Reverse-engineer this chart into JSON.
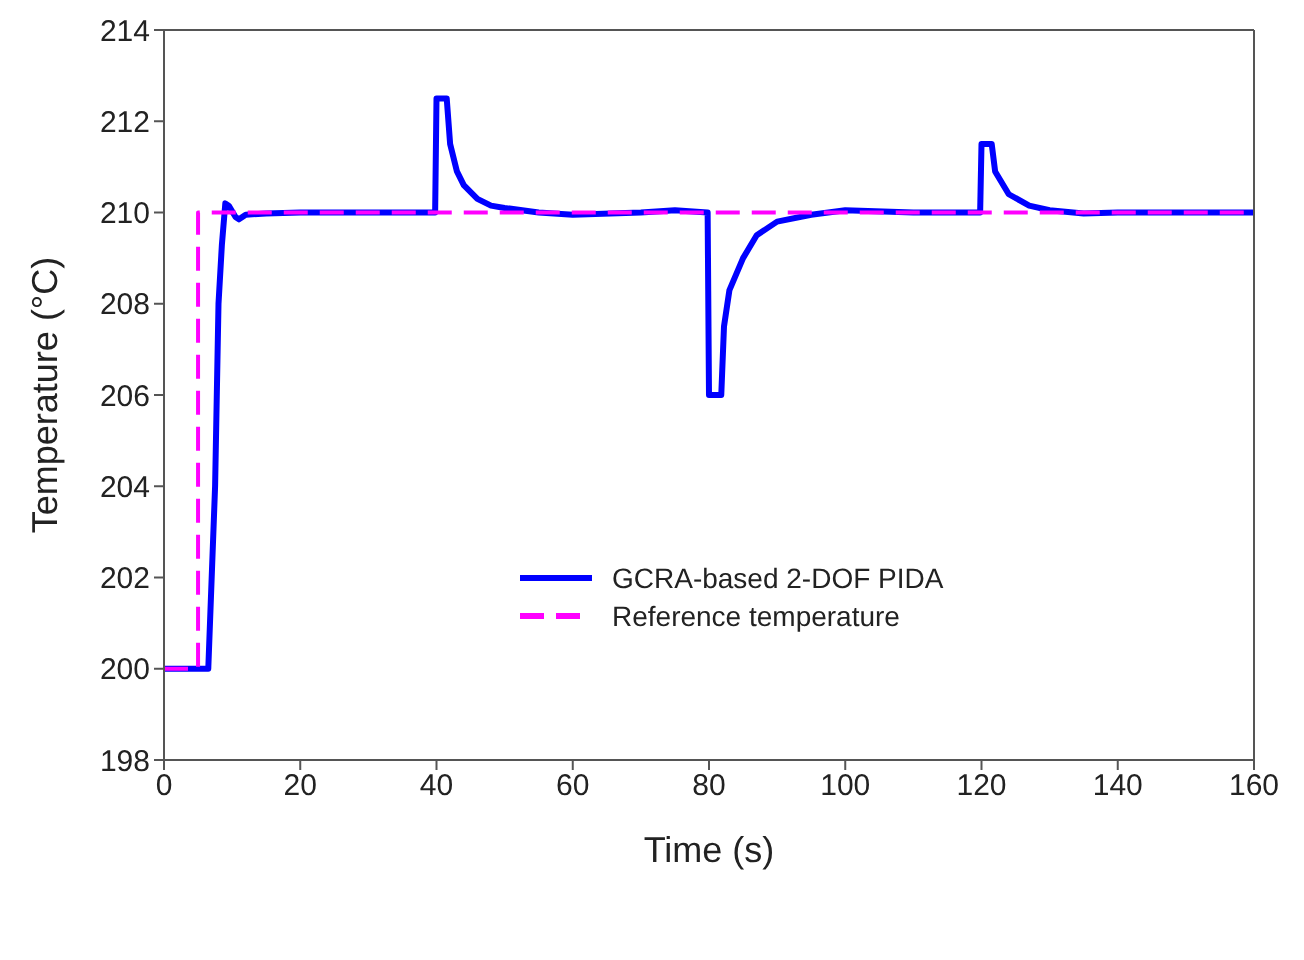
{
  "chart_data": {
    "type": "line",
    "xlabel": "Time (s)",
    "ylabel": "Temperature (°C)",
    "xlim": [
      0,
      160
    ],
    "xticks": [
      0,
      20,
      40,
      60,
      80,
      100,
      120,
      140,
      160
    ],
    "ylim": [
      198,
      214
    ],
    "yticks": [
      198,
      200,
      202,
      204,
      206,
      208,
      210,
      212,
      214
    ],
    "legend": "center",
    "marker": "none",
    "series": [
      {
        "name": "GCRA-based 2-DOF PIDA",
        "color": "#0000ff",
        "line_style": "solid",
        "x": [
          0,
          6.5,
          7.5,
          8,
          8.5,
          9,
          9.5,
          10.5,
          11,
          12,
          15,
          20,
          30,
          39.8,
          40,
          41.5,
          42,
          43,
          44,
          46,
          48,
          50,
          55,
          60,
          70,
          75,
          79.8,
          80,
          81.8,
          82.2,
          83,
          85,
          87,
          90,
          95,
          100,
          110,
          119.8,
          120,
          121.5,
          122,
          124,
          127,
          130,
          135,
          140,
          150,
          160
        ],
        "values": [
          200,
          200,
          204,
          208,
          209.3,
          210.2,
          210.15,
          209.9,
          209.85,
          209.95,
          209.98,
          210,
          210,
          210,
          212.5,
          212.5,
          211.5,
          210.9,
          210.6,
          210.3,
          210.15,
          210.1,
          210,
          209.95,
          210,
          210.05,
          210,
          206,
          206,
          207.5,
          208.3,
          209,
          209.5,
          209.8,
          209.95,
          210.05,
          210,
          210,
          211.5,
          211.5,
          210.9,
          210.4,
          210.15,
          210.05,
          209.98,
          210,
          210,
          210
        ]
      },
      {
        "name": "Reference temperature",
        "color": "#ff00ff",
        "line_style": "dashed",
        "x": [
          0,
          5,
          5,
          160
        ],
        "values": [
          200,
          200,
          210,
          210
        ]
      }
    ]
  }
}
